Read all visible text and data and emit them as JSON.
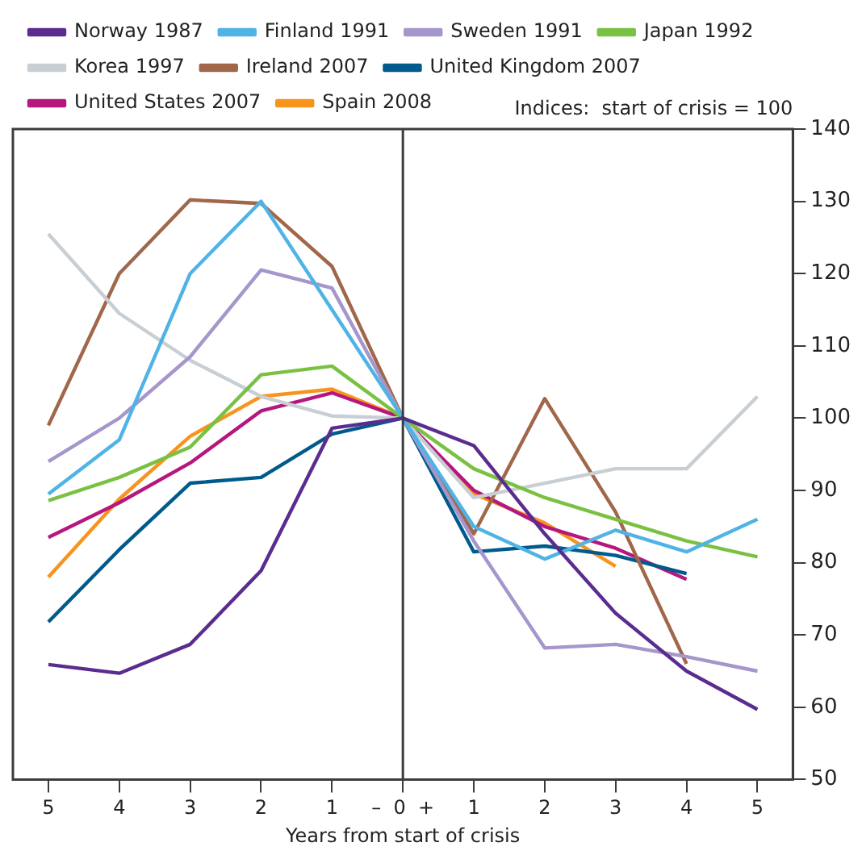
{
  "chart_data": {
    "type": "line",
    "xlabel": "Years from start of crisis",
    "annotations": [
      "Indices:  start of crisis = 100"
    ],
    "x": [
      -5,
      -4,
      -3,
      -2,
      -1,
      0,
      1,
      2,
      3,
      4,
      5
    ],
    "xlim": [
      -5.5,
      5.5
    ],
    "xticks": [
      {
        "value": -5,
        "label": "5"
      },
      {
        "value": -4,
        "label": "4"
      },
      {
        "value": -3,
        "label": "3"
      },
      {
        "value": -2,
        "label": "2"
      },
      {
        "value": -1,
        "label": "1"
      },
      {
        "value": 0,
        "label": "–  0  +"
      },
      1,
      2,
      3,
      4,
      5
    ],
    "ylim": [
      50,
      140
    ],
    "yticks": [
      50,
      60,
      70,
      80,
      90,
      100,
      110,
      120,
      130,
      140
    ],
    "grid": false,
    "legend": "top",
    "marker": "none",
    "line_style": "solid",
    "ref_lines": [
      {
        "axis": "x",
        "value": 0,
        "color": "#3c3c3c"
      }
    ],
    "series": [
      {
        "name": "Norway 1987",
        "color": "#5b2c8f",
        "values": [
          65.9,
          64.7,
          68.7,
          78.9,
          98.6,
          100,
          96.2,
          84,
          73,
          65,
          59.7
        ]
      },
      {
        "name": "Finland 1991",
        "color": "#4fb3e6",
        "values": [
          89.5,
          97,
          120,
          130,
          115,
          100,
          85,
          80.5,
          84.5,
          81.5,
          86
        ]
      },
      {
        "name": "Sweden 1991",
        "color": "#a596cb",
        "values": [
          94,
          100,
          108.5,
          120.5,
          118,
          100,
          83,
          68.2,
          68.7,
          67,
          65
        ]
      },
      {
        "name": "Japan 1992",
        "color": "#7ac143",
        "values": [
          88.6,
          91.8,
          96,
          106,
          107.2,
          100,
          93,
          89,
          86,
          83,
          80.8
        ]
      },
      {
        "name": "Korea 1997",
        "color": "#c8cfd4",
        "values": [
          125.5,
          114.5,
          108,
          103,
          100.3,
          100,
          89,
          91,
          93,
          93,
          103
        ]
      },
      {
        "name": "Ireland 2007",
        "color": "#a0674b",
        "values": [
          99,
          120,
          130.2,
          129.7,
          121,
          100,
          84,
          102.7,
          87,
          66,
          null
        ]
      },
      {
        "name": "United Kingdom 2007",
        "color": "#005a8c",
        "values": [
          71.8,
          81.8,
          91,
          91.8,
          97.8,
          100,
          81.5,
          82.3,
          81,
          78.5,
          null
        ]
      },
      {
        "name": "United States 2007",
        "color": "#b5177e",
        "values": [
          83.5,
          88.3,
          93.8,
          101,
          103.5,
          100,
          90,
          85,
          82,
          77.7,
          null
        ]
      },
      {
        "name": "Spain 2008",
        "color": "#f7941d",
        "values": [
          78,
          88.8,
          97.5,
          103,
          104,
          100,
          89.5,
          85.5,
          79.5,
          null,
          null
        ]
      }
    ]
  }
}
